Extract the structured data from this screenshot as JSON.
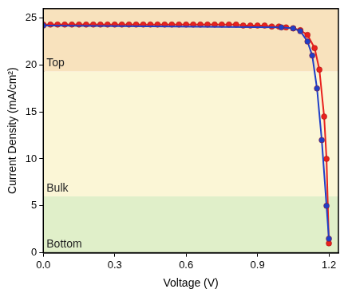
{
  "chart_data": {
    "type": "line",
    "x_label": "Voltage (V)",
    "y_label": "Current Density (mA/cm²)",
    "xlim": [
      0,
      1.24
    ],
    "ylim": [
      0,
      26
    ],
    "xticks": [
      {
        "value": 0,
        "label": "0.0"
      },
      0.3,
      0.6,
      0.9,
      1.2
    ],
    "yticks": [
      0,
      5,
      10,
      15,
      20,
      25
    ],
    "grid": false,
    "regions": [
      {
        "label": "Top",
        "ymin": 19.3,
        "ymax": 26,
        "color": "#f8e2bd"
      },
      {
        "label": "Bulk",
        "ymin": 6,
        "ymax": 19.3,
        "color": "#fbf6d6"
      },
      {
        "label": "Bottom",
        "ymin": 0,
        "ymax": 6,
        "color": "#e0efc9"
      }
    ],
    "series": [
      {
        "color": "#1f3fc8",
        "marker": "circle",
        "line_style": "solid",
        "x": [
          0,
          1.0,
          1.05,
          1.08,
          1.11,
          1.13,
          1.15,
          1.17,
          1.19,
          1.2
        ],
        "values": [
          24.2,
          24.0,
          23.9,
          23.6,
          22.5,
          21.0,
          17.5,
          12.0,
          5.0,
          1.5
        ]
      },
      {
        "color": "#e8211d",
        "marker": "circle",
        "line_style": "solid",
        "x": [
          0,
          0.03,
          0.06,
          0.09,
          0.12,
          0.15,
          0.18,
          0.21,
          0.24,
          0.27,
          0.3,
          0.33,
          0.36,
          0.39,
          0.42,
          0.45,
          0.48,
          0.51,
          0.54,
          0.57,
          0.6,
          0.63,
          0.66,
          0.69,
          0.72,
          0.75,
          0.78,
          0.81,
          0.84,
          0.87,
          0.9,
          0.93,
          0.96,
          0.99,
          1.02,
          1.05,
          1.08,
          1.11,
          1.14,
          1.16,
          1.18,
          1.19,
          1.2
        ],
        "values": [
          24.3,
          24.3,
          24.3,
          24.3,
          24.3,
          24.3,
          24.3,
          24.3,
          24.3,
          24.3,
          24.3,
          24.3,
          24.3,
          24.3,
          24.3,
          24.3,
          24.3,
          24.3,
          24.3,
          24.3,
          24.3,
          24.3,
          24.3,
          24.3,
          24.3,
          24.3,
          24.3,
          24.3,
          24.2,
          24.2,
          24.2,
          24.2,
          24.1,
          24.1,
          24.0,
          23.9,
          23.7,
          23.2,
          21.8,
          19.5,
          14.5,
          10.0,
          1.0
        ]
      }
    ]
  }
}
